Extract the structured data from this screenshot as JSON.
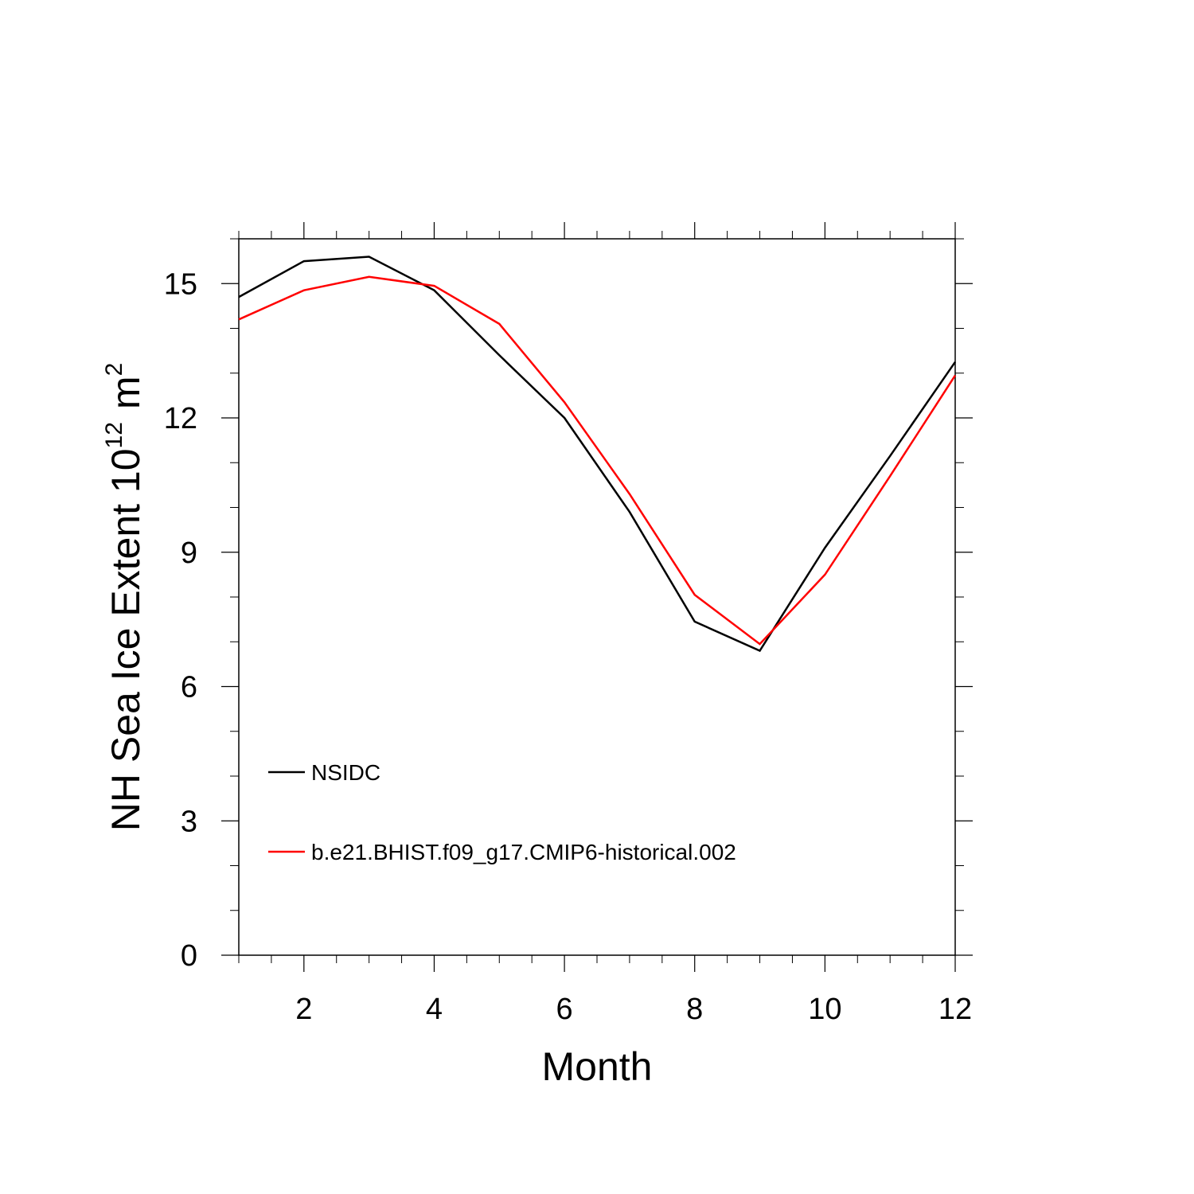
{
  "chart_data": {
    "type": "line",
    "xlabel": "Month",
    "ylabel": {
      "main": "NH Sea Ice Extent 10",
      "exponent": "12",
      "unit": "m",
      "unit_exponent": "2"
    },
    "xlim": [
      1,
      12
    ],
    "ylim": [
      0,
      16
    ],
    "xticks": [
      2,
      4,
      6,
      8,
      10,
      12
    ],
    "yticks": [
      0,
      3,
      6,
      9,
      12,
      15
    ],
    "grid": false,
    "legend_position": "bottom-left",
    "series": [
      {
        "name": "NSIDC",
        "color": "#000000",
        "x": [
          1,
          2,
          3,
          4,
          5,
          6,
          7,
          8,
          9,
          10,
          11,
          12
        ],
        "y": [
          14.7,
          15.5,
          15.6,
          14.85,
          13.4,
          12.0,
          9.9,
          7.45,
          6.8,
          9.1,
          11.15,
          13.25
        ]
      },
      {
        "name": "b.e21.BHIST.f09_g17.CMIP6-historical.002",
        "color": "#ff0000",
        "x": [
          1,
          2,
          3,
          4,
          5,
          6,
          7,
          8,
          9,
          10,
          11,
          12
        ],
        "y": [
          14.2,
          14.85,
          15.15,
          14.95,
          14.1,
          12.35,
          10.3,
          8.05,
          6.95,
          8.5,
          10.7,
          12.95
        ]
      }
    ]
  }
}
